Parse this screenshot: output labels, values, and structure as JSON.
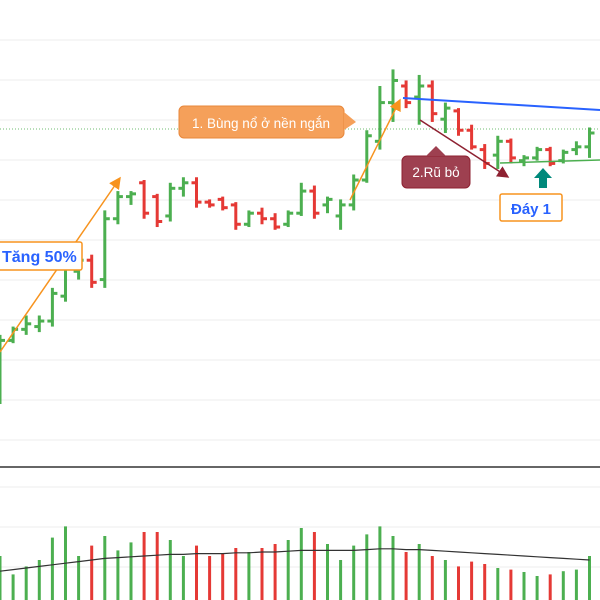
{
  "chart_data": {
    "type": "bar",
    "subtype": "ohlc-with-volume",
    "title": "",
    "xlabel": "",
    "ylabel": "",
    "grid": true,
    "colors": {
      "up": "#4caf50",
      "down": "#e53935",
      "volume_ma": "#333333",
      "pattern_arrow": "#f7931e",
      "drop_arrow": "#8e2131",
      "resistance_line": "#2962ff",
      "support_line": "#4caf50",
      "bottom_marker": "#00897b"
    },
    "price_ylim": [
      0,
      100
    ],
    "volume_ylim": [
      0,
      100
    ],
    "bars": [
      {
        "o": 20,
        "h": 28,
        "l": 3,
        "c": 26,
        "v": 55
      },
      {
        "o": 26,
        "h": 31,
        "l": 25,
        "c": 30,
        "v": 32
      },
      {
        "o": 30,
        "h": 35,
        "l": 28,
        "c": 32,
        "v": 42
      },
      {
        "o": 31,
        "h": 35,
        "l": 29,
        "c": 33,
        "v": 50
      },
      {
        "o": 33,
        "h": 45,
        "l": 31,
        "c": 43,
        "v": 78
      },
      {
        "o": 42,
        "h": 54,
        "l": 40,
        "c": 52,
        "v": 92
      },
      {
        "o": 51,
        "h": 58,
        "l": 48,
        "c": 55,
        "v": 55
      },
      {
        "o": 55,
        "h": 57,
        "l": 45,
        "c": 47,
        "v": 68
      },
      {
        "o": 48,
        "h": 73,
        "l": 45,
        "c": 70,
        "v": 80
      },
      {
        "o": 70,
        "h": 80,
        "l": 68,
        "c": 78,
        "v": 62
      },
      {
        "o": 78,
        "h": 80,
        "l": 75,
        "c": 79,
        "v": 72
      },
      {
        "o": 83,
        "h": 84,
        "l": 70,
        "c": 72,
        "v": 85
      },
      {
        "o": 78,
        "h": 79,
        "l": 67,
        "c": 69,
        "v": 85
      },
      {
        "o": 71,
        "h": 83,
        "l": 69,
        "c": 81,
        "v": 75
      },
      {
        "o": 81,
        "h": 85,
        "l": 78,
        "c": 83,
        "v": 55
      },
      {
        "o": 83,
        "h": 85,
        "l": 74,
        "c": 76,
        "v": 68
      },
      {
        "o": 76,
        "h": 77,
        "l": 74,
        "c": 75,
        "v": 55
      },
      {
        "o": 77,
        "h": 78,
        "l": 73,
        "c": 74,
        "v": 58
      },
      {
        "o": 75,
        "h": 76,
        "l": 66,
        "c": 68,
        "v": 65
      },
      {
        "o": 68,
        "h": 73,
        "l": 67,
        "c": 72,
        "v": 60
      },
      {
        "o": 72,
        "h": 74,
        "l": 68,
        "c": 70,
        "v": 65
      },
      {
        "o": 70,
        "h": 72,
        "l": 66,
        "c": 67,
        "v": 70
      },
      {
        "o": 68,
        "h": 73,
        "l": 67,
        "c": 72,
        "v": 75
      },
      {
        "o": 72,
        "h": 83,
        "l": 71,
        "c": 80,
        "v": 90
      },
      {
        "o": 80,
        "h": 82,
        "l": 70,
        "c": 72,
        "v": 85
      },
      {
        "o": 75,
        "h": 78,
        "l": 72,
        "c": 77,
        "v": 70
      },
      {
        "o": 71,
        "h": 77,
        "l": 66,
        "c": 75,
        "v": 50
      },
      {
        "o": 75,
        "h": 86,
        "l": 73,
        "c": 84,
        "v": 68
      },
      {
        "o": 84,
        "h": 102,
        "l": 83,
        "c": 100,
        "v": 82
      },
      {
        "o": 98,
        "h": 118,
        "l": 95,
        "c": 112,
        "v": 92
      },
      {
        "o": 112,
        "h": 124,
        "l": 105,
        "c": 120,
        "v": 80
      },
      {
        "o": 118,
        "h": 120,
        "l": 110,
        "c": 112,
        "v": 60
      },
      {
        "o": 114,
        "h": 122,
        "l": 104,
        "c": 118,
        "v": 70
      },
      {
        "o": 118,
        "h": 120,
        "l": 105,
        "c": 108,
        "v": 55
      },
      {
        "o": 106,
        "h": 112,
        "l": 101,
        "c": 110,
        "v": 50
      },
      {
        "o": 109,
        "h": 110,
        "l": 100,
        "c": 102,
        "v": 42
      },
      {
        "o": 102,
        "h": 104,
        "l": 95,
        "c": 96,
        "v": 48
      },
      {
        "o": 95,
        "h": 97,
        "l": 88,
        "c": 90,
        "v": 45
      },
      {
        "o": 93,
        "h": 100,
        "l": 88,
        "c": 98,
        "v": 40
      },
      {
        "o": 98,
        "h": 99,
        "l": 90,
        "c": 92,
        "v": 38
      },
      {
        "o": 91,
        "h": 93,
        "l": 89,
        "c": 92,
        "v": 35
      },
      {
        "o": 92,
        "h": 96,
        "l": 91,
        "c": 95,
        "v": 30
      },
      {
        "o": 95,
        "h": 96,
        "l": 89,
        "c": 90,
        "v": 32
      },
      {
        "o": 91,
        "h": 95,
        "l": 90,
        "c": 94,
        "v": 36
      },
      {
        "o": 95,
        "h": 98,
        "l": 93,
        "c": 96,
        "v": 38
      },
      {
        "o": 96,
        "h": 103,
        "l": 92,
        "c": 101,
        "v": 55
      }
    ],
    "volume_ma": [
      36,
      38,
      40,
      42,
      44,
      46,
      48,
      50,
      52,
      53,
      54,
      55,
      56,
      57,
      57,
      58,
      58,
      58,
      59,
      59,
      60,
      60,
      61,
      62,
      62,
      62,
      62,
      62,
      63,
      64,
      64,
      63,
      63,
      62,
      61,
      60,
      59,
      58,
      57,
      56,
      55,
      54,
      53,
      52,
      51,
      50
    ],
    "annotations": [
      {
        "id": "tang",
        "text": "Tăng 50%"
      },
      {
        "id": "bung",
        "text": "1. Bùng nổ ở nền ngắn"
      },
      {
        "id": "rubo",
        "text": "2.Rũ bỏ"
      },
      {
        "id": "day1",
        "text": "Đáy 1"
      }
    ]
  }
}
